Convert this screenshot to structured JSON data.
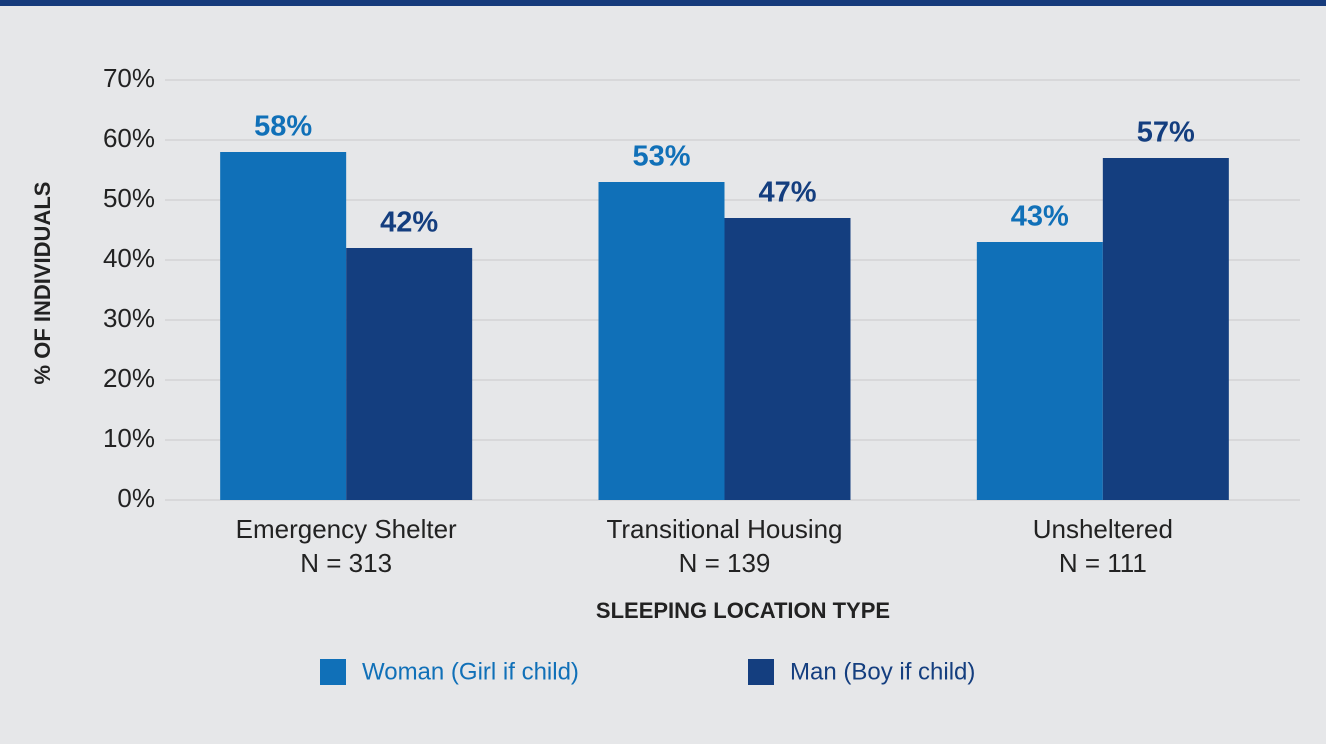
{
  "chart_data": {
    "type": "bar",
    "x_label": "SLEEPING LOCATION TYPE",
    "y_label": "% OF INDIVIDUALS",
    "categories": [
      [
        "Emergency Shelter",
        "N = 313"
      ],
      [
        "Transitional Housing",
        "N = 139"
      ],
      [
        "Unsheltered",
        "N = 111"
      ]
    ],
    "series": [
      {
        "name": "Woman (Girl if child)",
        "color": "#1070b8",
        "values": [
          58,
          53,
          43
        ],
        "value_labels": [
          "58%",
          "53%",
          "43%"
        ]
      },
      {
        "name": "Man (Boy if child)",
        "color": "#143e7f",
        "values": [
          42,
          47,
          57
        ],
        "value_labels": [
          "42%",
          "47%",
          "57%"
        ]
      }
    ],
    "ylim": [
      0,
      70
    ],
    "yticks": [
      {
        "value": 0,
        "label": "0%"
      },
      {
        "value": 10,
        "label": "10%"
      },
      {
        "value": 20,
        "label": "20%"
      },
      {
        "value": 30,
        "label": "30%"
      },
      {
        "value": 40,
        "label": "40%"
      },
      {
        "value": 50,
        "label": "50%"
      },
      {
        "value": 60,
        "label": "60%"
      },
      {
        "value": 70,
        "label": "70%"
      }
    ],
    "grid": true,
    "legend": "bottom"
  }
}
